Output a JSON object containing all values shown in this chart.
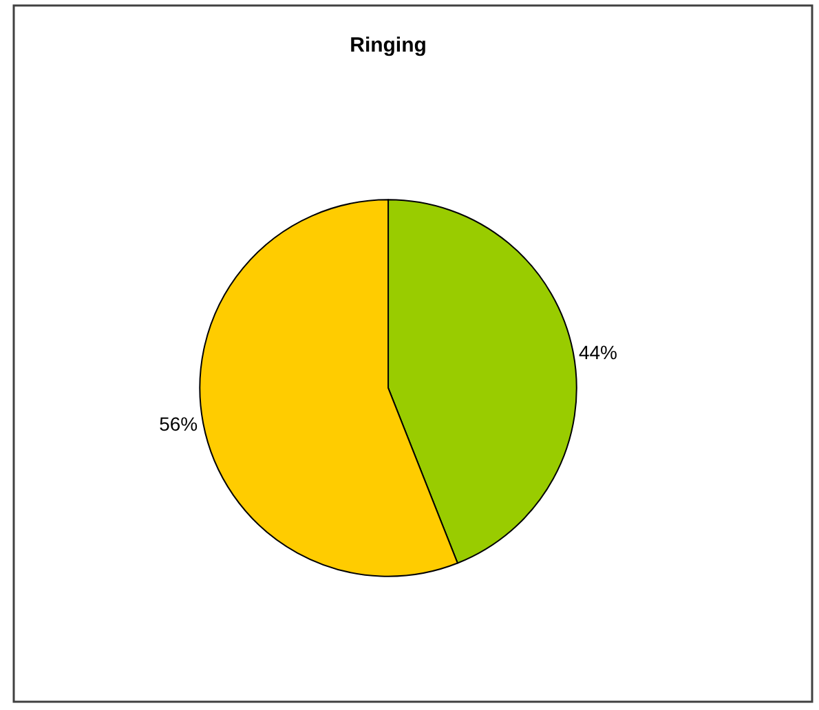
{
  "chart_data": {
    "type": "pie",
    "title": "Ringing",
    "categories": [
      null,
      null
    ],
    "values": [
      44,
      56
    ],
    "colors": [
      "#99cc00",
      "#ffcc00"
    ],
    "value_labels": [
      "44%",
      "56%"
    ],
    "legend": false
  }
}
